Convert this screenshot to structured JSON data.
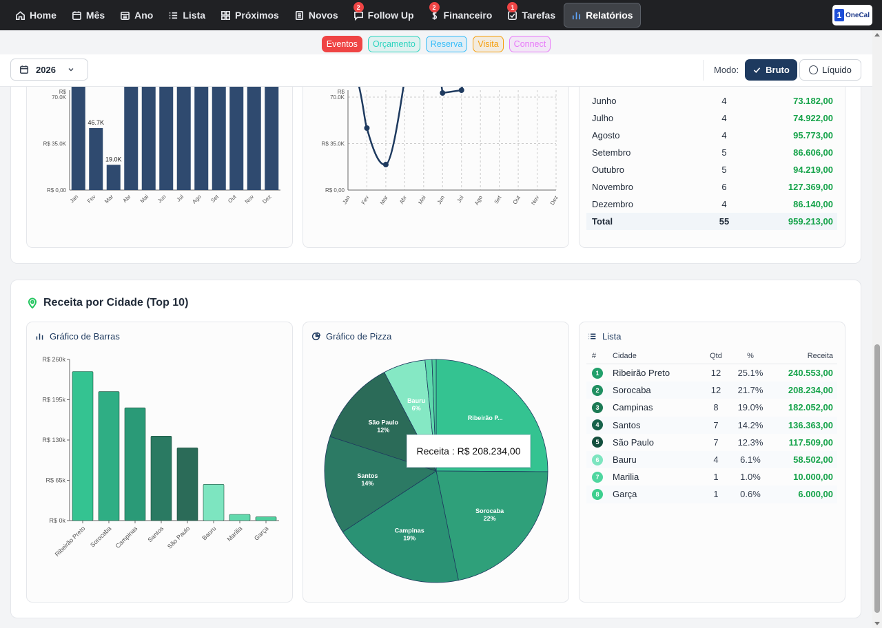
{
  "nav": {
    "items": [
      {
        "label": "Home",
        "icon": "home-icon"
      },
      {
        "label": "Mês",
        "icon": "calendar-icon"
      },
      {
        "label": "Ano",
        "icon": "calendar-grid-icon"
      },
      {
        "label": "Lista",
        "icon": "list-icon"
      },
      {
        "label": "Próximos",
        "icon": "grid-icon"
      },
      {
        "label": "Novos",
        "icon": "document-icon"
      },
      {
        "label": "Follow Up",
        "icon": "chat-icon",
        "badge": "2"
      },
      {
        "label": "Financeiro",
        "icon": "dollar-icon",
        "badge": "2"
      },
      {
        "label": "Tarefas",
        "icon": "checkbox-icon",
        "badge": "1"
      },
      {
        "label": "Relatórios",
        "icon": "bar-chart-icon",
        "active": true
      }
    ],
    "logo_mark": "1",
    "logo_text": "OneCal"
  },
  "chips": [
    {
      "label": "Eventos",
      "color": "#ef4444",
      "filled": true
    },
    {
      "label": "Orçamento",
      "color": "#2dd4bf",
      "filled": false
    },
    {
      "label": "Reserva",
      "color": "#38bdf8",
      "filled": false
    },
    {
      "label": "Visita",
      "color": "#f59e0b",
      "filled": false
    },
    {
      "label": "Connect",
      "color": "#e879f9",
      "filled": false
    }
  ],
  "toolbar": {
    "year": "2026",
    "modo_label": "Modo:",
    "bruto": "Bruto",
    "liquido": "Líquido"
  },
  "month_bar": {
    "ytick_labels": [
      "R$ 0,00",
      "R$ 35.0K",
      "70.0K",
      "R$"
    ],
    "months": [
      "Jan",
      "Fev",
      "Mar",
      "Abr",
      "Mai",
      "Jun",
      "Jul",
      "Ago",
      "Set",
      "Out",
      "Nov",
      "Dez"
    ],
    "data_labels": [
      "46.7K",
      "19.0K"
    ]
  },
  "month_line": {
    "ytick_labels": [
      "R$ 0,00",
      "R$ 35.0K",
      "70.0K",
      "R$"
    ],
    "months": [
      "Jan",
      "Fev",
      "Mar",
      "Abr",
      "Mai",
      "Jun",
      "Jul",
      "Ago",
      "Set",
      "Out",
      "Nov",
      "Dez"
    ]
  },
  "month_table": {
    "rows": [
      {
        "mes": "Junho",
        "qtd": "4",
        "valor": "73.182,00"
      },
      {
        "mes": "Julho",
        "qtd": "4",
        "valor": "74.922,00"
      },
      {
        "mes": "Agosto",
        "qtd": "4",
        "valor": "95.773,00"
      },
      {
        "mes": "Setembro",
        "qtd": "5",
        "valor": "86.606,00"
      },
      {
        "mes": "Outubro",
        "qtd": "5",
        "valor": "94.219,00"
      },
      {
        "mes": "Novembro",
        "qtd": "6",
        "valor": "127.369,00"
      },
      {
        "mes": "Dezembro",
        "qtd": "4",
        "valor": "86.140,00"
      }
    ],
    "total": {
      "label": "Total",
      "qtd": "55",
      "valor": "959.213,00"
    }
  },
  "city_section": {
    "title": "Receita por Cidade (Top 10)",
    "bar_title": "Gráfico de Barras",
    "pie_title": "Gráfico de Pizza",
    "list_title": "Lista",
    "tooltip": "Receita : R$ 208.234,00",
    "headers": {
      "num": "#",
      "cidade": "Cidade",
      "qtd": "Qtd",
      "pct": "%",
      "receita": "Receita"
    }
  },
  "chart_data": [
    {
      "type": "bar",
      "title": "Gráfico de Barras",
      "categories": [
        "Ribeirão Preto",
        "Sorocaba",
        "Campinas",
        "Santos",
        "São Paulo",
        "Bauru",
        "Marilia",
        "Garça"
      ],
      "values": [
        240553,
        208234,
        182052,
        136363,
        117509,
        58502,
        10000,
        6000
      ],
      "ylim": [
        0,
        260000
      ],
      "ytick_labels": [
        "R$ 0k",
        "R$ 65k",
        "R$ 130k",
        "R$ 195k",
        "R$ 260k"
      ],
      "colors": [
        "#34c391",
        "#2fae84",
        "#2a9a77",
        "#2a7a62",
        "#2b6b58",
        "#7de5c0",
        "#62d9ad",
        "#4fcf9e"
      ]
    },
    {
      "type": "pie",
      "title": "Gráfico de Pizza",
      "labels": [
        "Ribeirão P...",
        "Sorocaba",
        "Campinas",
        "Santos",
        "São Paulo",
        "Bauru",
        "Marilia",
        "Garça"
      ],
      "values": [
        25.1,
        21.7,
        19.0,
        14.2,
        12.3,
        6.1,
        1.0,
        0.6
      ],
      "slice_labels": [
        "",
        "22%",
        "19%",
        "14%",
        "12%",
        "6%",
        "",
        ""
      ],
      "colors": [
        "#34c391",
        "#2fa07a",
        "#2a9274",
        "#2c7a64",
        "#2b6b58",
        "#85e8c4",
        "#5fd9ad",
        "#4bcf9c"
      ]
    }
  ],
  "city_table": [
    {
      "num": "1",
      "cidade": "Ribeirão Preto",
      "qtd": "12",
      "pct": "25.1%",
      "receita": "240.553,00",
      "color": "#22a06b"
    },
    {
      "num": "2",
      "cidade": "Sorocaba",
      "qtd": "12",
      "pct": "21.7%",
      "receita": "208.234,00",
      "color": "#1f8f61"
    },
    {
      "num": "3",
      "cidade": "Campinas",
      "qtd": "8",
      "pct": "19.0%",
      "receita": "182.052,00",
      "color": "#1c7a54"
    },
    {
      "num": "4",
      "cidade": "Santos",
      "qtd": "7",
      "pct": "14.2%",
      "receita": "136.363,00",
      "color": "#17624a"
    },
    {
      "num": "5",
      "cidade": "São Paulo",
      "qtd": "7",
      "pct": "12.3%",
      "receita": "117.509,00",
      "color": "#134f3d"
    },
    {
      "num": "6",
      "cidade": "Bauru",
      "qtd": "4",
      "pct": "6.1%",
      "receita": "58.502,00",
      "color": "#7de5c0"
    },
    {
      "num": "7",
      "cidade": "Marilia",
      "qtd": "1",
      "pct": "1.0%",
      "receita": "10.000,00",
      "color": "#4fd69f"
    },
    {
      "num": "8",
      "cidade": "Garça",
      "qtd": "1",
      "pct": "0.6%",
      "receita": "6.000,00",
      "color": "#3ccf8e"
    }
  ]
}
